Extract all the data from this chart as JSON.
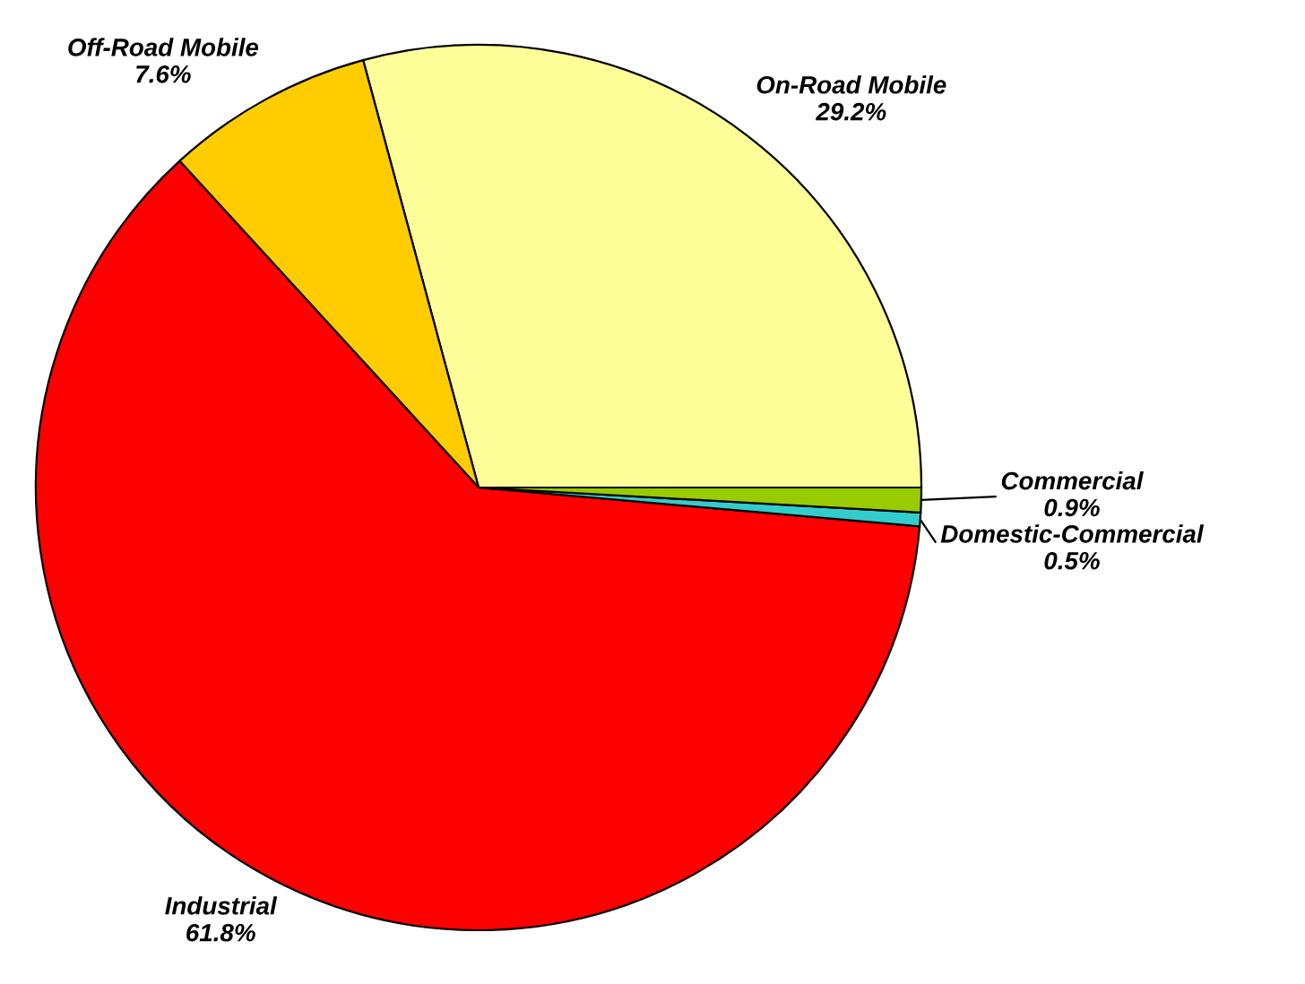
{
  "chart_data": {
    "type": "pie",
    "categories": [
      "On-Road Mobile",
      "Off-Road Mobile",
      "Industrial",
      "Domestic-Commercial",
      "Commercial"
    ],
    "values": [
      29.2,
      7.6,
      61.8,
      0.5,
      0.9
    ],
    "colors": [
      "#ffff99",
      "#ffcc00",
      "#ff0000",
      "#33cccc",
      "#99cc00"
    ],
    "value_labels": [
      "29.2%",
      "7.6%",
      "61.8%",
      "0.5%",
      "0.9%"
    ],
    "legend": false
  }
}
